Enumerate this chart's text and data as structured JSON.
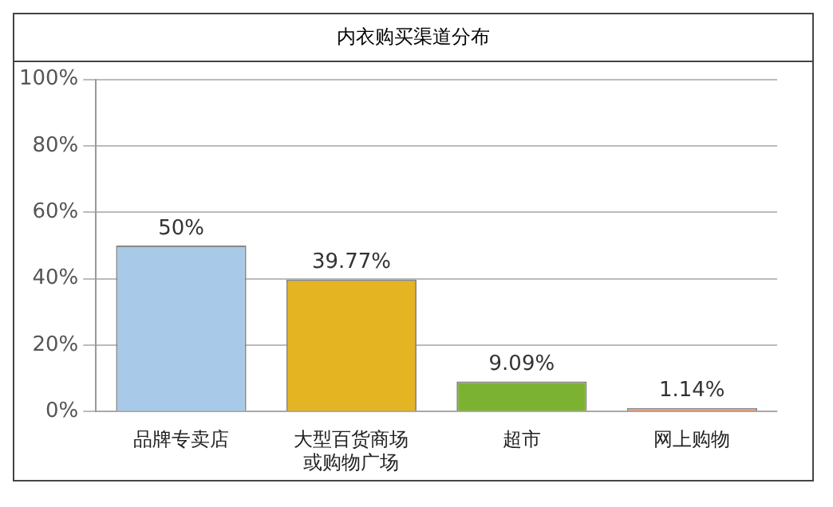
{
  "chart_data": {
    "type": "bar",
    "title": "内衣购买渠道分布",
    "categories": [
      "品牌专卖店",
      "大型百货商场或购物广场",
      "超市",
      "网上购物"
    ],
    "values": [
      50,
      39.77,
      9.09,
      1.14
    ],
    "colors": [
      "#a9c9e8",
      "#e4b422",
      "#7cb232",
      "#f2956a"
    ],
    "value_labels": [
      "50%",
      "39.77%",
      "9.09%",
      "1.14%"
    ],
    "ylim": [
      0,
      100
    ],
    "yticks": [
      {
        "value": 0,
        "label": "0%"
      },
      {
        "value": 20,
        "label": "20%"
      },
      {
        "value": 40,
        "label": "40%"
      },
      {
        "value": 60,
        "label": "60%"
      },
      {
        "value": 80,
        "label": "80%"
      },
      {
        "value": 100,
        "label": "100%"
      }
    ],
    "grid": "y"
  }
}
